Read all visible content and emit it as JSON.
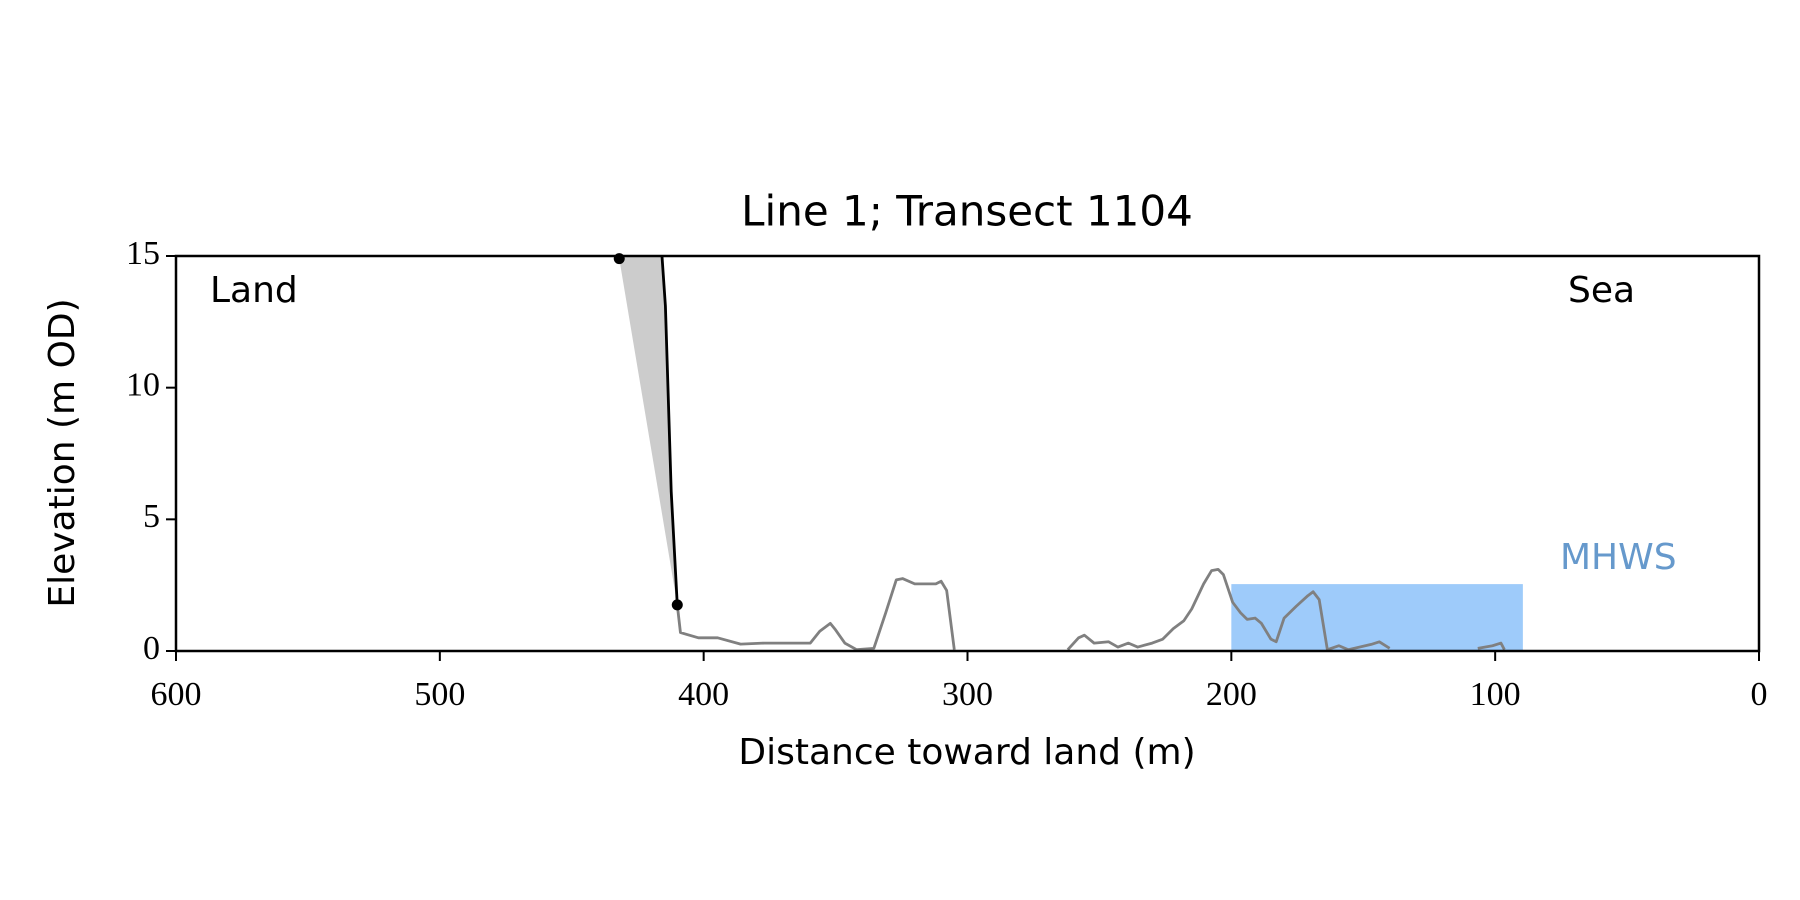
{
  "chart_data": {
    "type": "line",
    "title": "Line 1; Transect 1104",
    "xlabel": "Distance toward land (m)",
    "ylabel": "Elevation (m OD)",
    "xlim": [
      600,
      0
    ],
    "ylim": [
      0,
      15
    ],
    "xticks": [
      600,
      500,
      400,
      300,
      200,
      100,
      0
    ],
    "yticks": [
      0,
      5,
      10,
      15
    ],
    "annotations": [
      "Land",
      "Sea"
    ],
    "mhws": {
      "label": "MHWS",
      "color": "#9ecbfa",
      "label_color": "#6699cc",
      "x": [
        200,
        89.5
      ],
      "y": [
        0,
        2.54
      ]
    },
    "cliff_fill": {
      "color": "#cccccc",
      "x": [
        436,
        415.8,
        414.5,
        412.3,
        410,
        432
      ],
      "y": [
        15,
        15,
        13.1,
        6.05,
        1.75,
        14.9
      ]
    },
    "profile": {
      "color": "#808080",
      "x": [
        410,
        408.8,
        402,
        394.7,
        386,
        377,
        359.6,
        356,
        352,
        350,
        346.5,
        342,
        335.5,
        331,
        327,
        324.6,
        320,
        312,
        310,
        307.9,
        305,
        null,
        262,
        257.9,
        255.7,
        252,
        246.5,
        243,
        239,
        235.5,
        230,
        226,
        222,
        218,
        215,
        210.5,
        207.5,
        205,
        203,
        199.5,
        196.5,
        194,
        191,
        188.6,
        185,
        183,
        180,
        175.4,
        171,
        169,
        166.7,
        163.6,
        159.2,
        155.7,
        147,
        143.9,
        140,
        null,
        106.6,
        101,
        97.8,
        96.5
      ],
      "y": [
        1.75,
        0.7,
        0.5,
        0.5,
        0.26,
        0.3,
        0.3,
        0.75,
        1.05,
        0.8,
        0.3,
        0.05,
        0.1,
        1.45,
        2.7,
        2.75,
        2.55,
        2.55,
        2.65,
        2.3,
        0.05,
        null,
        0.05,
        0.5,
        0.6,
        0.3,
        0.35,
        0.15,
        0.3,
        0.15,
        0.3,
        0.45,
        0.85,
        1.15,
        1.6,
        2.55,
        3.05,
        3.1,
        2.9,
        1.85,
        1.45,
        1.2,
        1.25,
        1.05,
        0.45,
        0.35,
        1.25,
        1.7,
        2.1,
        2.25,
        1.95,
        0.05,
        0.2,
        0.05,
        0.25,
        0.35,
        0.1,
        null,
        0.1,
        0.2,
        0.3,
        0.05
      ]
    },
    "cliff": {
      "color": "#000000",
      "x": [
        415.8,
        414.5,
        412.3,
        410
      ],
      "y": [
        15,
        13.1,
        6.05,
        1.75
      ]
    },
    "cliff_points": {
      "color": "#000000",
      "x": [
        432,
        410
      ],
      "y": [
        14.9,
        1.75
      ]
    }
  }
}
